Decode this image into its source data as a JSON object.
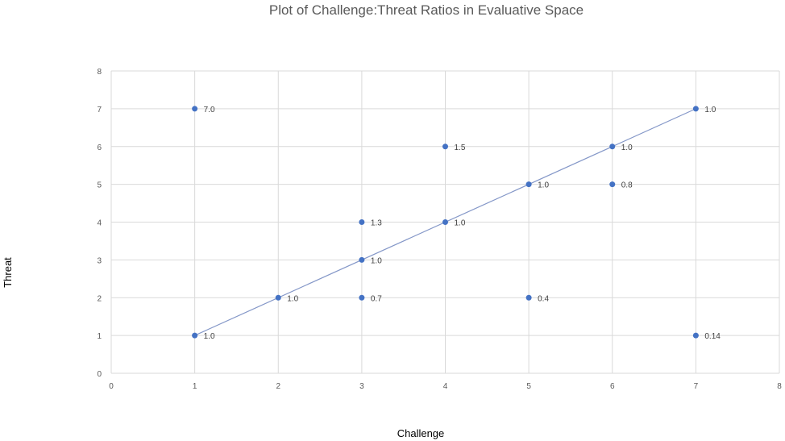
{
  "chart_data": {
    "type": "scatter",
    "title": "Plot of Challenge:Threat Ratios in Evaluative Space",
    "xlabel": "Challenge",
    "ylabel": "Threat",
    "xlim": [
      0,
      8
    ],
    "ylim": [
      0,
      8
    ],
    "xticks": [
      "0",
      "1",
      "2",
      "3",
      "4",
      "5",
      "6",
      "7",
      "8"
    ],
    "yticks": [
      "0",
      "1",
      "2",
      "3",
      "4",
      "5",
      "6",
      "7",
      "8"
    ],
    "grid": true,
    "legend": "none",
    "marker_color": "#4472c4",
    "line_color": "#8497c8",
    "line": {
      "x": [
        1,
        7
      ],
      "y": [
        1,
        7
      ]
    },
    "points": [
      {
        "x": 1,
        "y": 7,
        "label": "7.0"
      },
      {
        "x": 1,
        "y": 1,
        "label": "1.0"
      },
      {
        "x": 2,
        "y": 2,
        "label": "1.0"
      },
      {
        "x": 3,
        "y": 4,
        "label": "1.3"
      },
      {
        "x": 3,
        "y": 3,
        "label": "1.0"
      },
      {
        "x": 3,
        "y": 2,
        "label": "0.7"
      },
      {
        "x": 4,
        "y": 6,
        "label": "1.5"
      },
      {
        "x": 4,
        "y": 4,
        "label": "1.0"
      },
      {
        "x": 5,
        "y": 5,
        "label": "1.0"
      },
      {
        "x": 5,
        "y": 2,
        "label": "0.4"
      },
      {
        "x": 6,
        "y": 6,
        "label": "1.0"
      },
      {
        "x": 6,
        "y": 5,
        "label": "0.8"
      },
      {
        "x": 7,
        "y": 7,
        "label": "1.0"
      },
      {
        "x": 7,
        "y": 1,
        "label": "0.14"
      }
    ]
  }
}
